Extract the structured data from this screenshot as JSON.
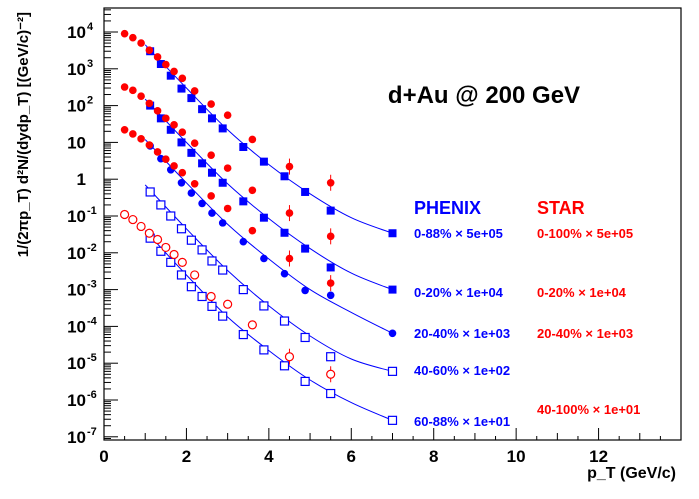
{
  "chart_data": {
    "type": "scatter",
    "title": "d+Au @ 200 GeV",
    "xlabel": "p_T (GeV/c)",
    "ylabel": "1/(2πp_T) d²N/(dydp_T)  [(GeV/c)⁻²]",
    "xlim": [
      0,
      14
    ],
    "ylim": [
      5e-08,
      50000.0
    ],
    "yscale": "log",
    "x_ticks": [
      0,
      2,
      4,
      6,
      8,
      10,
      12
    ],
    "y_ticks": [
      {
        "value": 10000.0,
        "base": "10",
        "exp": "4"
      },
      {
        "value": 1000.0,
        "base": "10",
        "exp": "3"
      },
      {
        "value": 100.0,
        "base": "10",
        "exp": "2"
      },
      {
        "value": 10.0,
        "base": "10",
        "exp": ""
      },
      {
        "value": 1,
        "base": "1",
        "exp": ""
      },
      {
        "value": 0.1,
        "base": "10",
        "exp": "-1"
      },
      {
        "value": 0.01,
        "base": "10",
        "exp": "-2"
      },
      {
        "value": 0.001,
        "base": "10",
        "exp": "-3"
      },
      {
        "value": 0.0001,
        "base": "10",
        "exp": "-4"
      },
      {
        "value": 1e-05,
        "base": "10",
        "exp": "-5"
      },
      {
        "value": 1e-06,
        "base": "10",
        "exp": "-6"
      },
      {
        "value": 1e-07,
        "base": "10",
        "exp": "-7"
      }
    ],
    "legend": {
      "phenix_header": "PHENIX",
      "star_header": "STAR",
      "phenix_color": "#0000ff",
      "star_color": "#ff0000"
    },
    "series": [
      {
        "name": "0-88% × 5e+05",
        "group": "PHENIX",
        "color": "#0000ff",
        "marker": "square-filled",
        "label_row": 0,
        "x": [
          1.12,
          1.38,
          1.62,
          1.88,
          2.12,
          2.38,
          2.62,
          2.88,
          3.38,
          3.88,
          4.38,
          4.88,
          5.5,
          7.0
        ],
        "y": [
          3000,
          1350,
          650,
          290,
          160,
          80,
          45,
          24,
          7.5,
          3.0,
          1.2,
          0.45,
          0.14,
          0.034
        ]
      },
      {
        "name": "0-20% × 1e+04",
        "group": "PHENIX",
        "color": "#0000ff",
        "marker": "square-filled",
        "label_row": 1,
        "x": [
          1.12,
          1.38,
          1.62,
          1.88,
          2.12,
          2.38,
          2.62,
          2.88,
          3.38,
          3.88,
          4.38,
          4.88,
          5.5,
          7.0
        ],
        "y": [
          100,
          45,
          22,
          10,
          5.2,
          2.7,
          1.5,
          0.8,
          0.25,
          0.09,
          0.035,
          0.013,
          0.004,
          0.001
        ]
      },
      {
        "name": "20-40% × 1e+03",
        "group": "PHENIX",
        "color": "#0000ff",
        "marker": "circle-filled",
        "label_row": 2,
        "x": [
          1.12,
          1.38,
          1.62,
          1.88,
          2.12,
          2.38,
          2.62,
          2.88,
          3.38,
          3.88,
          4.38,
          4.88,
          5.5,
          7.0
        ],
        "y": [
          8.0,
          3.6,
          1.8,
          0.8,
          0.42,
          0.22,
          0.12,
          0.065,
          0.02,
          0.007,
          0.0027,
          0.00095,
          0.0007,
          6.5e-05
        ]
      },
      {
        "name": "40-60% × 1e+02",
        "group": "PHENIX",
        "color": "#0000ff",
        "marker": "square-open",
        "label_row": 3,
        "x": [
          1.12,
          1.38,
          1.62,
          1.88,
          2.12,
          2.38,
          2.62,
          2.88,
          3.38,
          3.88,
          4.38,
          4.88,
          5.5,
          7.0
        ],
        "y": [
          0.45,
          0.2,
          0.1,
          0.045,
          0.022,
          0.012,
          0.006,
          0.0034,
          0.001,
          0.00036,
          0.00014,
          5e-05,
          1.5e-05,
          6e-06
        ]
      },
      {
        "name": "60-88% × 1e+01",
        "group": "PHENIX",
        "color": "#0000ff",
        "marker": "square-open",
        "label_row": 4,
        "x": [
          1.12,
          1.38,
          1.62,
          1.88,
          2.12,
          2.38,
          2.62,
          2.88,
          3.38,
          3.88,
          4.38,
          4.88,
          5.5,
          7.0
        ],
        "y": [
          0.025,
          0.011,
          0.0055,
          0.0025,
          0.0012,
          0.00065,
          0.00035,
          0.00019,
          6e-05,
          2.3e-05,
          8.5e-06,
          3.2e-06,
          1.5e-06,
          2.8e-07
        ]
      },
      {
        "name": "0-100% × 5e+05",
        "group": "STAR",
        "color": "#ff0000",
        "marker": "circle-filled",
        "label_row": 0,
        "x": [
          0.5,
          0.7,
          0.9,
          1.1,
          1.3,
          1.5,
          1.7,
          1.9,
          2.2,
          2.6,
          3.0,
          3.6,
          4.5,
          5.5
        ],
        "y": [
          9000,
          7000,
          5000,
          3200,
          2100,
          1300,
          850,
          550,
          250,
          110,
          55,
          12,
          2.2,
          0.8
        ]
      },
      {
        "name": "0-20% × 1e+04",
        "group": "STAR",
        "color": "#ff0000",
        "marker": "circle-filled",
        "label_row": 1,
        "x": [
          0.5,
          0.7,
          0.9,
          1.1,
          1.3,
          1.5,
          1.7,
          1.9,
          2.2,
          2.6,
          3.0,
          3.6,
          4.5,
          5.5
        ],
        "y": [
          320,
          260,
          180,
          115,
          72,
          45,
          30,
          19,
          9.5,
          4.5,
          2.0,
          0.5,
          0.12,
          0.028
        ]
      },
      {
        "name": "20-40% × 1e+03",
        "group": "STAR",
        "color": "#ff0000",
        "marker": "circle-filled",
        "label_row": 2,
        "x": [
          0.5,
          0.7,
          0.9,
          1.1,
          1.3,
          1.5,
          1.7,
          1.9,
          2.2,
          2.6,
          3.0,
          3.6,
          4.5,
          5.5
        ],
        "y": [
          22,
          17,
          12.5,
          8.5,
          5.5,
          3.5,
          2.3,
          1.5,
          0.75,
          0.35,
          0.16,
          0.04,
          0.007,
          0.0015
        ]
      },
      {
        "name": "40-100% × 1e+01",
        "group": "STAR",
        "color": "#ff0000",
        "marker": "circle-open",
        "label_row": 5,
        "x": [
          0.5,
          0.7,
          0.9,
          1.1,
          1.3,
          1.5,
          1.7,
          1.9,
          2.2,
          2.6,
          3.0,
          3.6,
          4.5,
          5.5
        ],
        "y": [
          0.11,
          0.08,
          0.052,
          0.034,
          0.023,
          0.014,
          0.009,
          0.0055,
          0.0025,
          0.00065,
          0.0004,
          0.00011,
          1.5e-05,
          5e-06
        ]
      }
    ],
    "fit_curves": [
      {
        "x": [
          1.0,
          2.0,
          3.0,
          4.0,
          5.0,
          6.0,
          7.0
        ],
        "y": [
          4500,
          300,
          22,
          2.5,
          0.4,
          0.09,
          0.034
        ]
      },
      {
        "x": [
          1.0,
          2.0,
          3.0,
          4.0,
          5.0,
          6.0,
          7.0
        ],
        "y": [
          150,
          10,
          0.75,
          0.085,
          0.013,
          0.0028,
          0.001
        ]
      },
      {
        "x": [
          1.0,
          2.0,
          3.0,
          4.0,
          5.0,
          6.0,
          7.0
        ],
        "y": [
          12,
          0.8,
          0.06,
          0.0068,
          0.001,
          0.00024,
          6.5e-05
        ]
      },
      {
        "x": [
          1.0,
          2.0,
          3.0,
          4.0,
          5.0,
          6.0,
          7.0
        ],
        "y": [
          0.7,
          0.045,
          0.0033,
          0.00036,
          5.5e-05,
          1.3e-05,
          6e-06
        ]
      },
      {
        "x": [
          1.0,
          2.0,
          3.0,
          4.0,
          5.0,
          6.0,
          7.0
        ],
        "y": [
          0.04,
          0.0025,
          0.00018,
          2.2e-05,
          3.5e-06,
          8.5e-07,
          2.8e-07
        ]
      }
    ]
  }
}
